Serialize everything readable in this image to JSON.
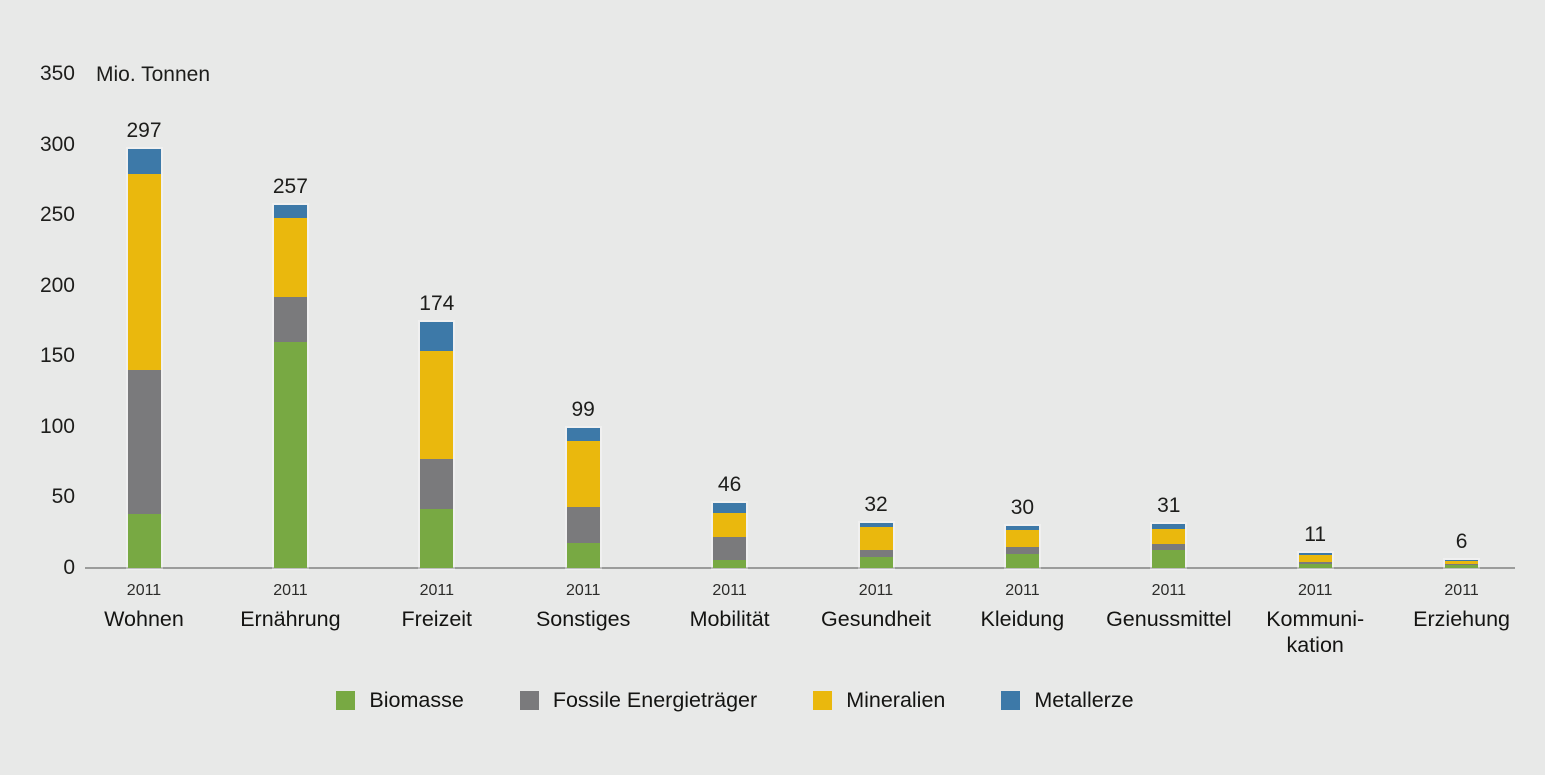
{
  "chart_data": {
    "type": "bar",
    "stacked": true,
    "unit_label": "Mio. Tonnen",
    "ylabel": "Mio. Tonnen",
    "xlabel": "",
    "ylim": [
      0,
      350
    ],
    "yticks": [
      0,
      50,
      100,
      150,
      200,
      250,
      300,
      350
    ],
    "grid": false,
    "legend_position": "bottom",
    "year": "2011",
    "categories": [
      {
        "label": "Wohnen",
        "lines": "Wohnen",
        "year": "2011",
        "total": 297
      },
      {
        "label": "Ernährung",
        "lines": "Ernährung",
        "year": "2011",
        "total": 257
      },
      {
        "label": "Freizeit",
        "lines": "Freizeit",
        "year": "2011",
        "total": 174
      },
      {
        "label": "Sonstiges",
        "lines": "Sonstiges",
        "year": "2011",
        "total": 99
      },
      {
        "label": "Mobilität",
        "lines": "Mobilität",
        "year": "2011",
        "total": 46
      },
      {
        "label": "Gesundheit",
        "lines": "Gesundheit",
        "year": "2011",
        "total": 32
      },
      {
        "label": "Kleidung",
        "lines": "Kleidung",
        "year": "2011",
        "total": 30
      },
      {
        "label": "Genussmittel",
        "lines": "Genussmittel",
        "year": "2011",
        "total": 31
      },
      {
        "label": "Kommunikation",
        "lines": "Kommuni-\nkation",
        "year": "2011",
        "total": 11
      },
      {
        "label": "Erziehung",
        "lines": "Erziehung",
        "year": "2011",
        "total": 6
      }
    ],
    "series": [
      {
        "name": "Biomasse",
        "color": "#78a943",
        "values": [
          38,
          160,
          42,
          18,
          6,
          8,
          10,
          13,
          3,
          2
        ]
      },
      {
        "name": "Fossile Energieträger",
        "color": "#7a7a7c",
        "values": [
          102,
          32,
          35,
          25,
          16,
          5,
          5,
          4,
          1,
          0.5
        ]
      },
      {
        "name": "Mineralien",
        "color": "#eab80d",
        "values": [
          139,
          56,
          77,
          47,
          17,
          16,
          12,
          11,
          5,
          2.5
        ]
      },
      {
        "name": "Metallerze",
        "color": "#3d79a8",
        "values": [
          18,
          9,
          20,
          9,
          7,
          3,
          3,
          3,
          2,
          1
        ]
      }
    ]
  },
  "colors": {
    "background": "#e8e9e8",
    "axis_line": "#9b9c9b",
    "text": "#1d1d1b"
  }
}
